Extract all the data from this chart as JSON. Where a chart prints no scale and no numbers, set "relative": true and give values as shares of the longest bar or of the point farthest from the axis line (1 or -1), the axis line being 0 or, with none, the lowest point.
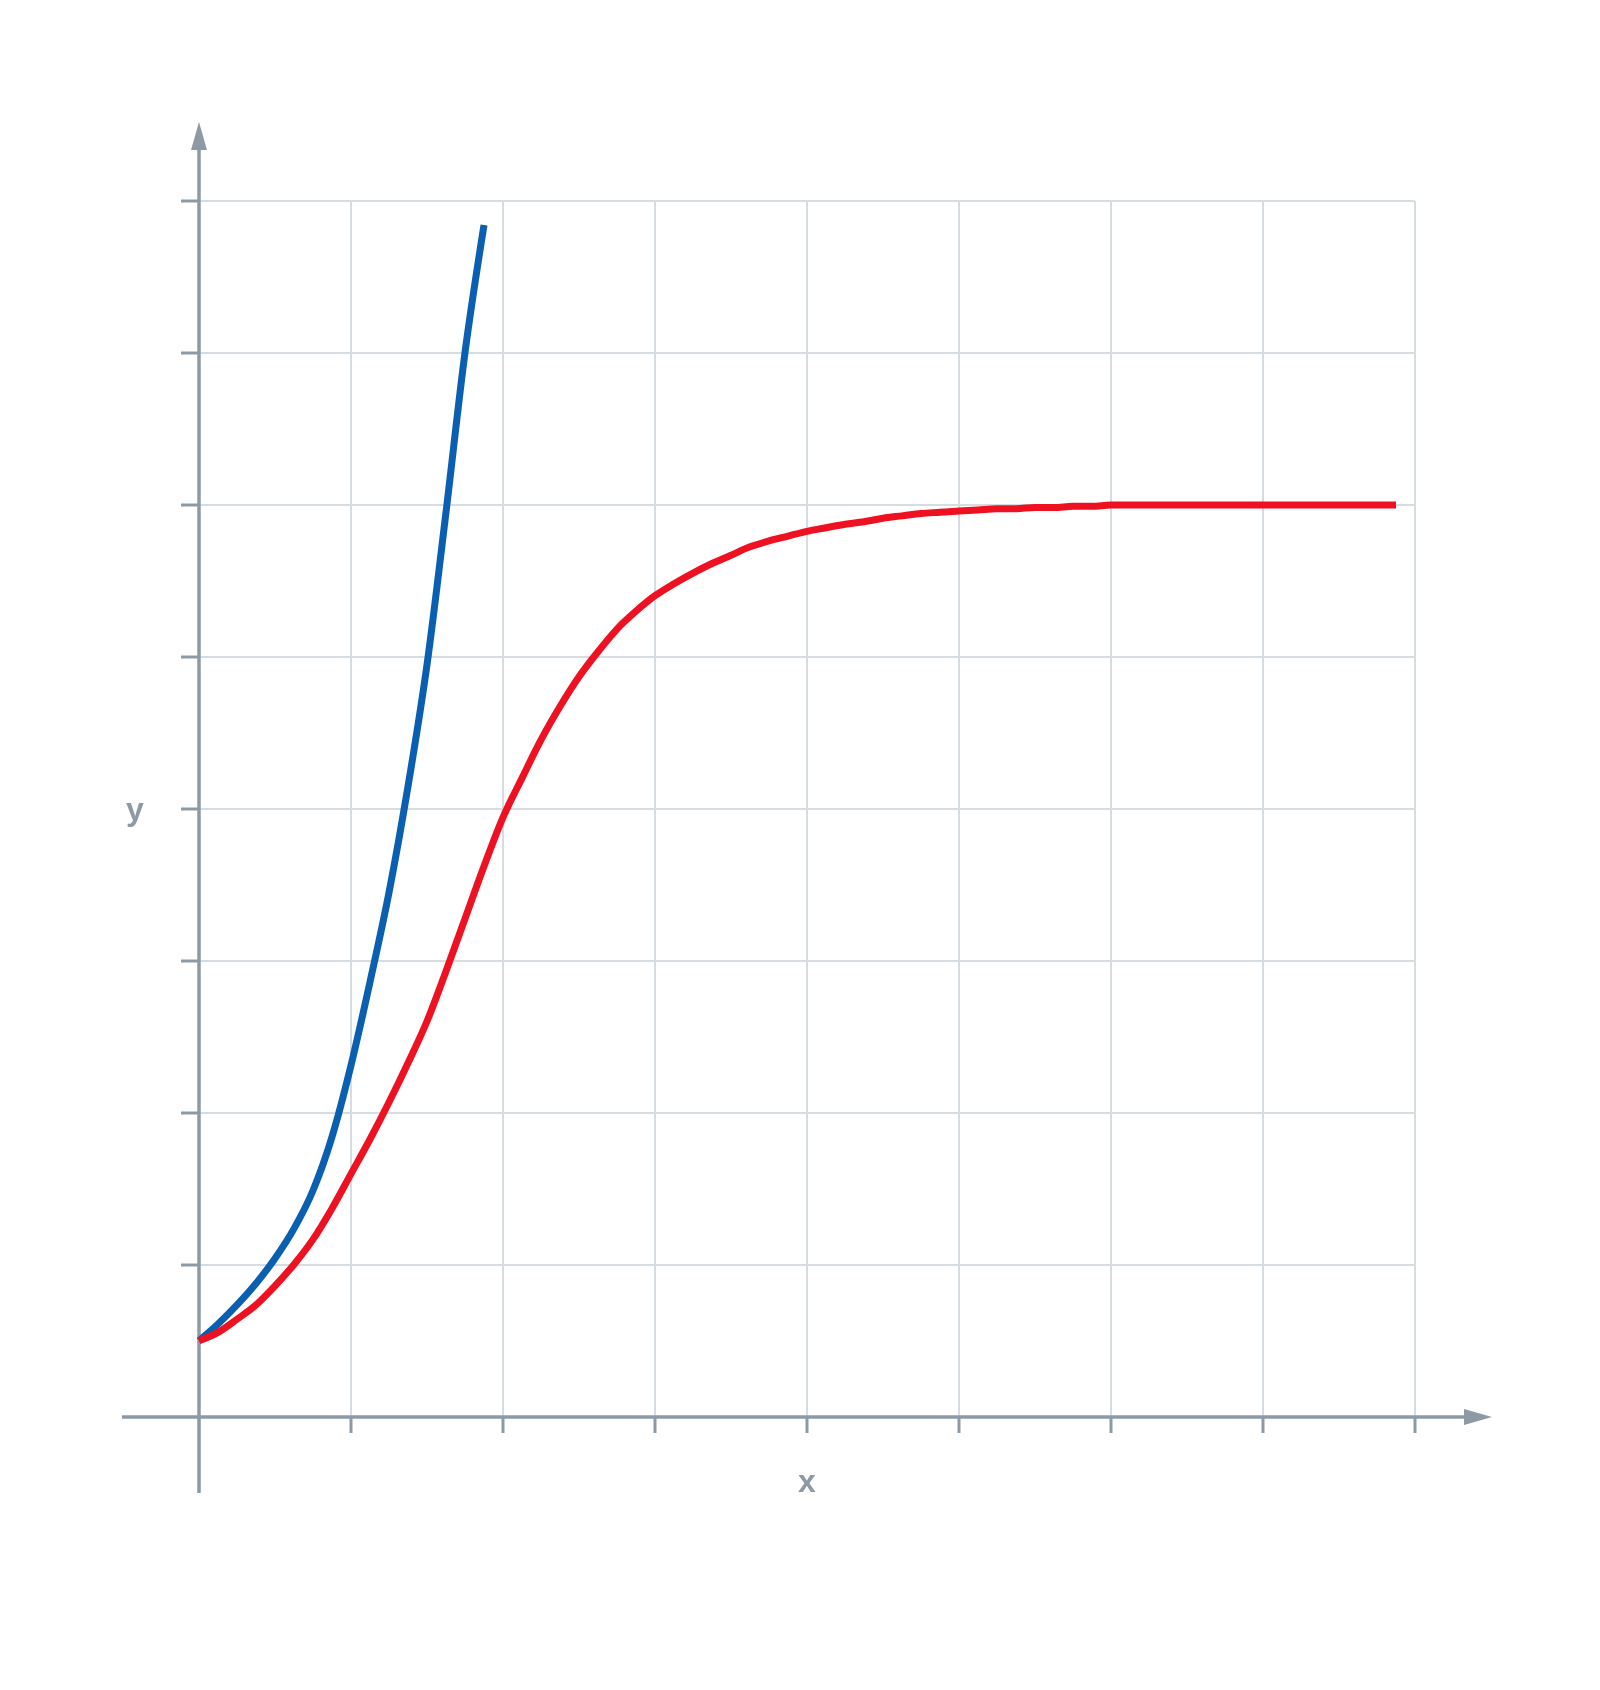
{
  "chart_data": {
    "type": "line",
    "xlabel": "x",
    "ylabel": "y",
    "relative": true,
    "grid": true,
    "marker": "none",
    "line_style": "solid",
    "categories": [
      null,
      null,
      null,
      null,
      null,
      null,
      null,
      null,
      null,
      null,
      null,
      null,
      null,
      null,
      null,
      null,
      null,
      null,
      null,
      null,
      null,
      null,
      null,
      null,
      null,
      null,
      null,
      null,
      null,
      null,
      null,
      null,
      null,
      null,
      null,
      null,
      null,
      null,
      null,
      null,
      null,
      null,
      null,
      null,
      null,
      null,
      null,
      null,
      null,
      null,
      null,
      null,
      null,
      null,
      null,
      null,
      null,
      null,
      null,
      null,
      null,
      null,
      null,
      null,
      null
    ],
    "series": [
      {
        "color": "#0a5fb0",
        "values": [
          0.064,
          0.078,
          0.094,
          0.112,
          0.133,
          0.158,
          0.19,
          0.235,
          0.295,
          0.365,
          0.44,
          0.529,
          0.631,
          0.759,
          0.893,
          1.0,
          null,
          null,
          null,
          null,
          null,
          null,
          null,
          null,
          null,
          null,
          null,
          null,
          null,
          null,
          null,
          null,
          null,
          null,
          null,
          null,
          null,
          null,
          null,
          null,
          null,
          null,
          null,
          null,
          null,
          null,
          null,
          null,
          null,
          null,
          null,
          null,
          null,
          null,
          null,
          null,
          null,
          null,
          null,
          null,
          null,
          null,
          null,
          null,
          null
        ]
      },
      {
        "color": "#ee1122",
        "values": [
          0.064,
          0.071,
          0.082,
          0.094,
          0.11,
          0.128,
          0.149,
          0.175,
          0.204,
          0.233,
          0.264,
          0.297,
          0.332,
          0.374,
          0.418,
          0.462,
          0.503,
          0.536,
          0.568,
          0.596,
          0.621,
          0.642,
          0.661,
          0.676,
          0.689,
          0.699,
          0.708,
          0.716,
          0.723,
          0.73,
          0.735,
          0.739,
          0.743,
          0.746,
          0.749,
          0.751,
          0.754,
          0.756,
          0.758,
          0.759,
          0.76,
          0.761,
          0.762,
          0.762,
          0.763,
          0.763,
          0.764,
          0.764,
          0.765,
          0.765,
          0.765,
          0.765,
          0.765,
          0.765,
          0.765,
          0.765,
          0.765,
          0.765,
          0.765,
          0.765,
          0.765,
          0.765,
          0.765,
          0.765,
          null
        ]
      }
    ]
  }
}
